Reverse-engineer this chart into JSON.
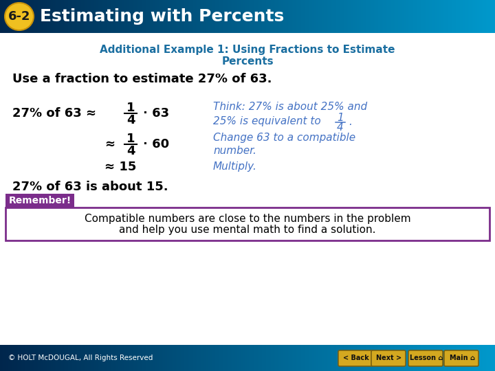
{
  "title_badge_text": "6-2",
  "title_text": "Estimating with Percents",
  "header_bg_top": "#000000",
  "header_bg_mid": "#009bbf",
  "header_bg": "#00aacc",
  "header_text_color": "#ffffff",
  "badge_bg": "#f0c020",
  "badge_text_color": "#1a1a1a",
  "subtitle_color": "#1a6ea0",
  "subtitle_line1": "Additional Example 1: Using Fractions to Estimate",
  "subtitle_line2": "Percents",
  "problem_text": "Use a fraction to estimate 27% of 63.",
  "problem_color": "#000000",
  "math_color": "#000000",
  "think_color": "#4472c4",
  "remember_bg": "#7b2d8b",
  "remember_label": "Remember!",
  "remember_label_color": "#ffffff",
  "remember_border": "#7b2d8b",
  "remember_text_line1": "Compatible numbers are close to the numbers in the problem",
  "remember_text_line2": "and help you use mental math to find a solution.",
  "remember_text_color": "#000000",
  "footer_bg": "#009bbf",
  "footer_text": "© HOLT McDOUGAL, All Rights Reserved",
  "footer_text_color": "#ffffff",
  "bg_color": "#ffffff",
  "nav_button_bg": "#d4a820",
  "nav_buttons": [
    "< Back",
    "Next >",
    "Lesson",
    "Main"
  ]
}
